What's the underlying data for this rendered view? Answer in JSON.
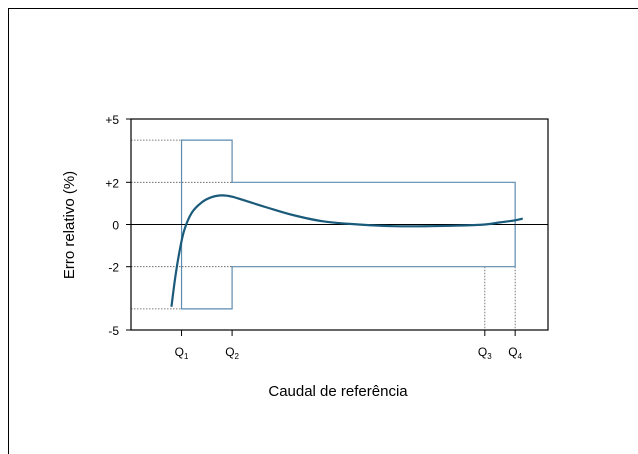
{
  "chart_data": {
    "type": "line",
    "ylabel": "Erro relativo (%)",
    "xlabel": "Caudal de referência",
    "ylim": [
      -5,
      5
    ],
    "y_ticks": [
      {
        "value": 5,
        "label": "+5"
      },
      {
        "value": 2,
        "label": "+2"
      },
      {
        "value": 0,
        "label": "0"
      },
      {
        "value": -2,
        "label": "-2"
      },
      {
        "value": -5,
        "label": "-5"
      }
    ],
    "x_points": [
      {
        "key": "q1",
        "base": "Q",
        "sub": "1",
        "x": 1.0
      },
      {
        "key": "q2",
        "base": "Q",
        "sub": "2",
        "x": 2.0
      },
      {
        "key": "q3",
        "base": "Q",
        "sub": "3",
        "x": 7.0
      },
      {
        "key": "q4",
        "base": "Q",
        "sub": "4",
        "x": 7.6
      }
    ],
    "xlim": [
      0,
      8.25
    ],
    "error_limits": {
      "low_zone": {
        "from": 1.0,
        "to": 2.0,
        "upper": 4.0,
        "lower": -4.0
      },
      "high_zone": {
        "from": 2.0,
        "to": 7.6,
        "upper": 2.0,
        "lower": -2.0
      }
    },
    "series": [
      {
        "x": [
          0.8,
          0.87,
          0.95,
          1.05,
          1.2,
          1.4,
          1.6,
          1.8,
          2.0,
          2.3,
          2.7,
          3.2,
          3.8,
          4.5,
          5.2,
          5.9,
          6.5,
          7.0,
          7.3,
          7.6,
          7.75
        ],
        "y": [
          -3.9,
          -2.6,
          -1.4,
          -0.3,
          0.55,
          1.05,
          1.3,
          1.38,
          1.32,
          1.1,
          0.8,
          0.45,
          0.15,
          0.0,
          -0.08,
          -0.08,
          -0.05,
          0.0,
          0.1,
          0.2,
          0.28
        ]
      }
    ],
    "colors": {
      "curve": "#1a5a7a",
      "limit": "#5b8bb0",
      "axis": "#000000",
      "guide": "#555555"
    }
  }
}
